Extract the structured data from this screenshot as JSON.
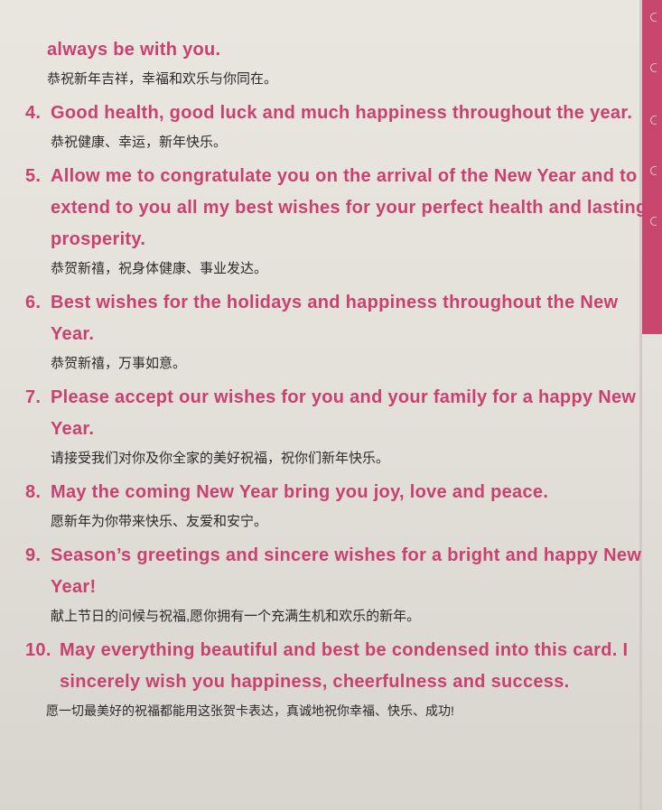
{
  "entries": [
    {
      "number": "",
      "english": "always be with you.",
      "chinese": "恭祝新年吉祥，幸福和欢乐与你同在。"
    },
    {
      "number": "4.",
      "english": "Good health, good luck and much happiness throughout the year.",
      "chinese": "恭祝健康、幸运，新年快乐。"
    },
    {
      "number": "5.",
      "english": "Allow me to congratulate you on the arrival of the New Year and to extend to you all my best wishes for your perfect health and lasting prosperity.",
      "chinese": "恭贺新禧，祝身体健康、事业发达。"
    },
    {
      "number": "6.",
      "english": "Best wishes for the holidays and happiness throughout the New Year.",
      "chinese": "恭贺新禧，万事如意。"
    },
    {
      "number": "7.",
      "english": "Please accept our wishes for you and your family for a happy New Year.",
      "chinese": "请接受我们对你及你全家的美好祝福，祝你们新年快乐。"
    },
    {
      "number": "8.",
      "english": "May the coming New Year bring you joy, love and peace.",
      "chinese": "愿新年为你带来快乐、友爱和安宁。"
    },
    {
      "number": "9.",
      "english": "Season’s greetings and sincere wishes for a bright and happy New Year!",
      "chinese": "献上节日的问候与祝福,愿你拥有一个充满生机和欢乐的新年。"
    },
    {
      "number": "10.",
      "english": "May everything beautiful and best be condensed into this card. I sincerely wish you happiness, cheerfulness and success.",
      "chinese": "愿一切最美好的祝福都能用这张贺卡表达，真诚地祝你幸福、快乐、成功!"
    }
  ]
}
